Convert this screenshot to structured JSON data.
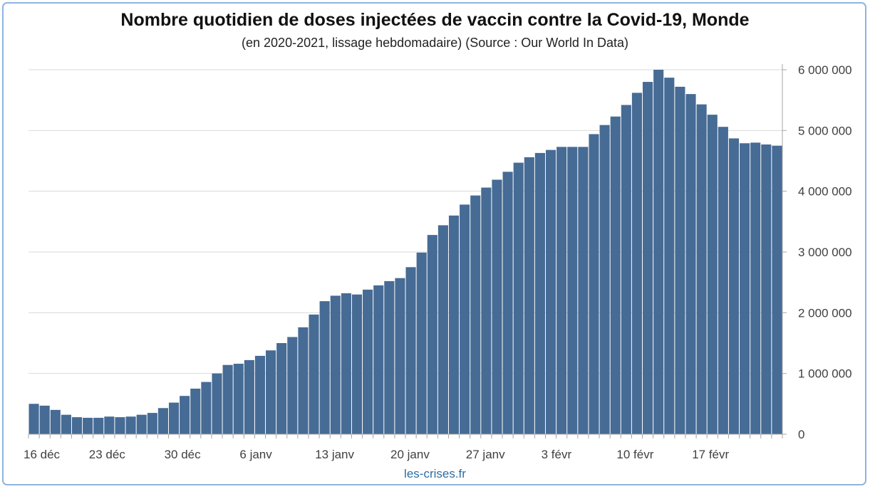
{
  "chart_data": {
    "type": "bar",
    "title": "Nombre quotidien de doses injectées de vaccin contre la Covid-19, Monde",
    "subtitle": "(en 2020-2021, lissage hebdomadaire) (Source : Our World In Data)",
    "source_label": "les-crises.fr",
    "x_tick_labels": [
      "16 déc",
      "23 déc",
      "30 déc",
      "6 janv",
      "13 janv",
      "20 janv",
      "27 janv",
      "3 févr",
      "10 févr",
      "17 févr"
    ],
    "x_tick_index": [
      0,
      7,
      14,
      21,
      28,
      35,
      42,
      49,
      56,
      63
    ],
    "y_tick_labels": [
      "0",
      "1 000 000",
      "2 000 000",
      "3 000 000",
      "4 000 000",
      "5 000 000",
      "6 000 000"
    ],
    "y_tick_values": [
      0,
      1000000,
      2000000,
      3000000,
      4000000,
      5000000,
      6000000
    ],
    "ylim": [
      0,
      6000000
    ],
    "y_axis_side": "right",
    "grid": true,
    "bar_color": "#466b95",
    "categories": [
      "16 déc",
      "17 déc",
      "18 déc",
      "19 déc",
      "20 déc",
      "21 déc",
      "22 déc",
      "23 déc",
      "24 déc",
      "25 déc",
      "26 déc",
      "27 déc",
      "28 déc",
      "29 déc",
      "30 déc",
      "31 déc",
      "1 janv",
      "2 janv",
      "3 janv",
      "4 janv",
      "5 janv",
      "6 janv",
      "7 janv",
      "8 janv",
      "9 janv",
      "10 janv",
      "11 janv",
      "12 janv",
      "13 janv",
      "14 janv",
      "15 janv",
      "16 janv",
      "17 janv",
      "18 janv",
      "19 janv",
      "20 janv",
      "21 janv",
      "22 janv",
      "23 janv",
      "24 janv",
      "25 janv",
      "26 janv",
      "27 janv",
      "28 janv",
      "29 janv",
      "30 janv",
      "31 janv",
      "1 févr",
      "2 févr",
      "3 févr",
      "4 févr",
      "5 févr",
      "6 févr",
      "7 févr",
      "8 févr",
      "9 févr",
      "10 févr",
      "11 févr",
      "12 févr",
      "13 févr",
      "14 févr",
      "15 févr",
      "16 févr",
      "17 févr",
      "18 févr",
      "19 févr",
      "20 févr",
      "21 févr",
      "22 févr",
      "23 févr"
    ],
    "values": [
      500000,
      470000,
      400000,
      320000,
      280000,
      270000,
      270000,
      290000,
      280000,
      290000,
      320000,
      350000,
      430000,
      520000,
      630000,
      750000,
      860000,
      1000000,
      1140000,
      1160000,
      1220000,
      1290000,
      1380000,
      1500000,
      1600000,
      1760000,
      1970000,
      2190000,
      2280000,
      2320000,
      2300000,
      2380000,
      2450000,
      2520000,
      2570000,
      2750000,
      2990000,
      3280000,
      3440000,
      3600000,
      3780000,
      3930000,
      4060000,
      4190000,
      4320000,
      4470000,
      4560000,
      4630000,
      4680000,
      4730000,
      4730000,
      4730000,
      4940000,
      5090000,
      5230000,
      5420000,
      5620000,
      5800000,
      6000000,
      5870000,
      5720000,
      5600000,
      5430000,
      5260000,
      5060000,
      4870000,
      4790000,
      4800000,
      4770000,
      4750000
    ]
  }
}
